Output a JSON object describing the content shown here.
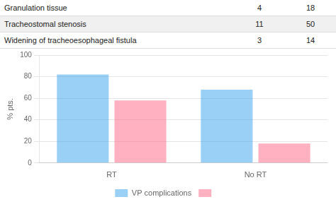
{
  "chart_data": {
    "type": "bar",
    "categories": [
      "RT",
      "No RT"
    ],
    "series": [
      {
        "name": "VP complications",
        "values": [
          82,
          68
        ]
      },
      {
        "values": [
          58,
          18
        ]
      }
    ],
    "ylabel": "% pts.",
    "ylim": [
      0,
      100
    ],
    "yticks": [
      0,
      20,
      40,
      60,
      80,
      100
    ],
    "grid": true,
    "legend": "bottom",
    "annotations": [
      [
        "Granulation tissue",
        "4",
        "18"
      ],
      [
        "Tracheostomal stenosis",
        "11",
        "50"
      ],
      [
        "Widening of tracheoesophageal fistula",
        "3",
        "14"
      ]
    ]
  }
}
